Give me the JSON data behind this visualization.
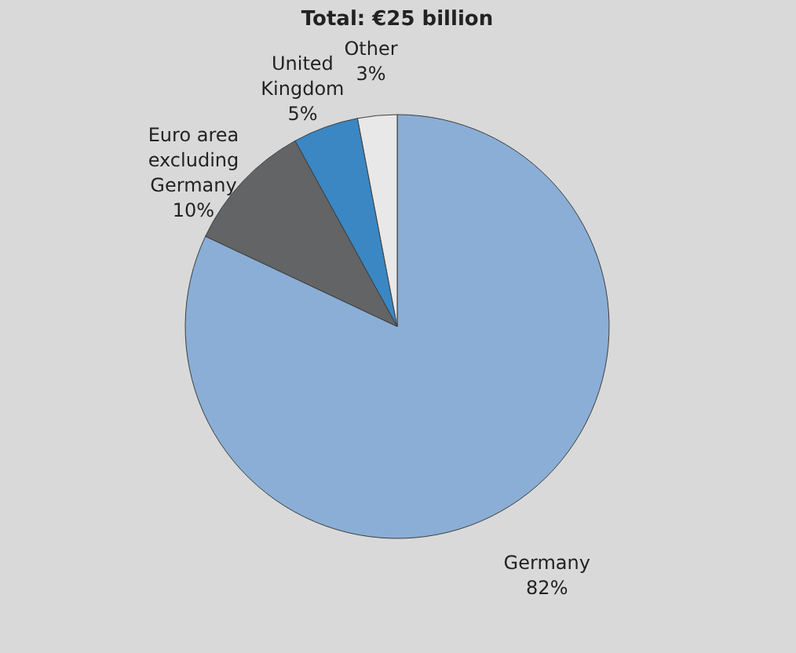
{
  "chart_data": {
    "type": "pie",
    "title": "Total: €25 billion",
    "categories": [
      "Germany",
      "Euro area excluding Germany",
      "United Kingdom",
      "Other"
    ],
    "values": [
      82,
      10,
      5,
      3
    ],
    "colors": [
      "#8aaed6",
      "#636466",
      "#3a87c4",
      "#e8e8e8"
    ],
    "value_labels": [
      "82%",
      "10%",
      "5%",
      "3%"
    ]
  }
}
